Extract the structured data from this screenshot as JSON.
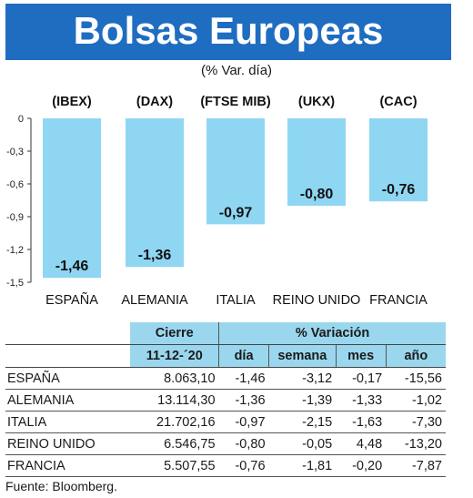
{
  "header": {
    "title": "Bolsas Europeas",
    "subtitle": "(% Var. día)"
  },
  "chart_data": {
    "type": "bar",
    "categories": [
      "ESPAÑA",
      "ALEMANIA",
      "ITALIA",
      "REINO UNIDO",
      "FRANCIA"
    ],
    "index_labels": [
      "(IBEX)",
      "(DAX)",
      "(FTSE MIB)",
      "(UKX)",
      "(CAC)"
    ],
    "values": [
      -1.46,
      -1.36,
      -0.97,
      -0.8,
      -0.76
    ],
    "value_labels": [
      "-1,46",
      "-1,36",
      "-0,97",
      "-0,80",
      "-0,76"
    ],
    "yticks": [
      0,
      -0.3,
      -0.6,
      -0.9,
      -1.2,
      -1.5
    ],
    "ytick_labels": [
      "0",
      "-0,3",
      "-0,6",
      "-0,9",
      "-1,2",
      "-1,5"
    ],
    "ylim": [
      -1.5,
      0
    ],
    "bar_color": "#8fd6f2",
    "grid": false
  },
  "table": {
    "header_cierre": "Cierre",
    "header_variacion": "% Variación",
    "date": "11-12-´20",
    "columns": [
      "día",
      "semana",
      "mes",
      "año"
    ],
    "rows": [
      {
        "name": "ESPAÑA",
        "cierre": "8.063,10",
        "dia": "-1,46",
        "semana": "-3,12",
        "mes": "-0,17",
        "ano": "-15,56"
      },
      {
        "name": "ALEMANIA",
        "cierre": "13.114,30",
        "dia": "-1,36",
        "semana": "-1,39",
        "mes": "-1,33",
        "ano": "-1,02"
      },
      {
        "name": "ITALIA",
        "cierre": "21.702,16",
        "dia": "-0,97",
        "semana": "-2,15",
        "mes": "-1,63",
        "ano": "-7,30"
      },
      {
        "name": "REINO UNIDO",
        "cierre": "6.546,75",
        "dia": "-0,80",
        "semana": "-0,05",
        "mes": "4,48",
        "ano": "-13,20"
      },
      {
        "name": "FRANCIA",
        "cierre": "5.507,55",
        "dia": "-0,76",
        "semana": "-1,81",
        "mes": "-0,20",
        "ano": "-7,87"
      }
    ]
  },
  "source": "Fuente: Bloomberg.",
  "colors": {
    "banner": "#1f6dc0",
    "table_header": "#9ad7ee"
  }
}
